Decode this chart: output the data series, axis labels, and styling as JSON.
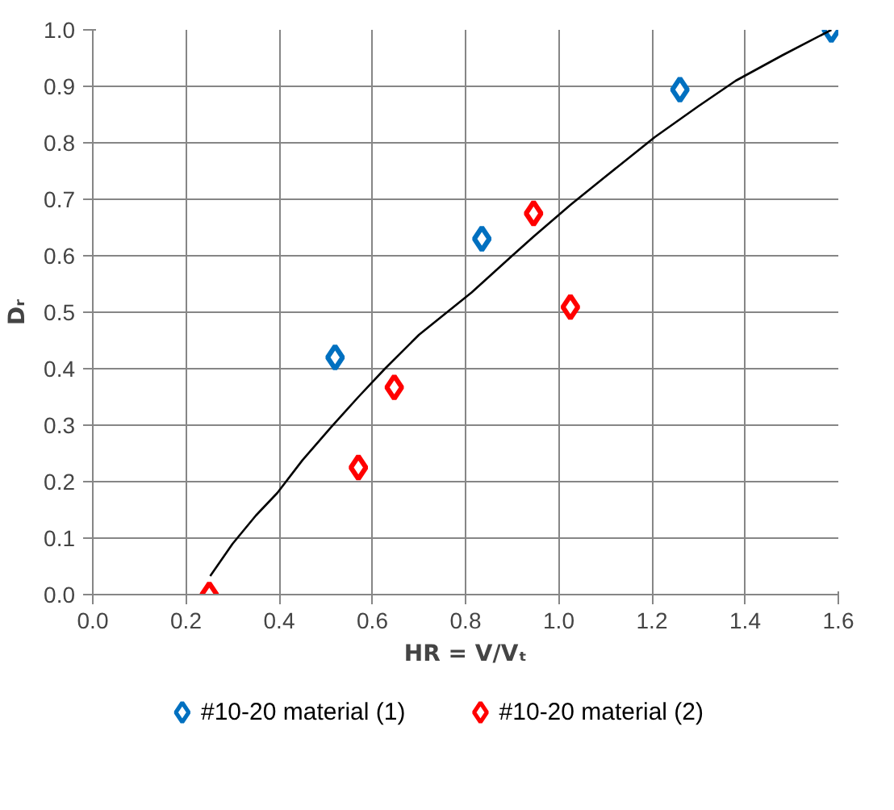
{
  "chart_data": {
    "type": "scatter",
    "xlabel": "HR = V/Vₜ",
    "ylabel": "Dᵣ",
    "xlim": [
      0,
      1.6
    ],
    "ylim": [
      0,
      1.0
    ],
    "xticks": [
      {
        "value": 0,
        "label": "0.0"
      },
      {
        "value": 0.2,
        "label": "0.2"
      },
      {
        "value": 0.4,
        "label": "0.4"
      },
      {
        "value": 0.6,
        "label": "0.6"
      },
      {
        "value": 0.8,
        "label": "0.8"
      },
      {
        "value": 1.0,
        "label": "1.0"
      },
      {
        "value": 1.2,
        "label": "1.2"
      },
      {
        "value": 1.4,
        "label": "1.4"
      },
      {
        "value": 1.6,
        "label": "1.6"
      }
    ],
    "yticks": [
      {
        "value": 0,
        "label": "0.0"
      },
      {
        "value": 0.1,
        "label": "0.1"
      },
      {
        "value": 0.2,
        "label": "0.2"
      },
      {
        "value": 0.3,
        "label": "0.3"
      },
      {
        "value": 0.4,
        "label": "0.4"
      },
      {
        "value": 0.5,
        "label": "0.5"
      },
      {
        "value": 0.6,
        "label": "0.6"
      },
      {
        "value": 0.7,
        "label": "0.7"
      },
      {
        "value": 0.8,
        "label": "0.8"
      },
      {
        "value": 0.9,
        "label": "0.9"
      },
      {
        "value": 1.0,
        "label": "1.0"
      }
    ],
    "grid": true,
    "legend": "bottom",
    "marker": "diamond",
    "series": [
      {
        "name": "#10-20 material (1)",
        "color": "#0070c0",
        "x": [
          0.52,
          0.835,
          1.26,
          1.585
        ],
        "values": [
          0.42,
          0.63,
          0.894,
          1.0
        ]
      },
      {
        "name": "#10-20 material (2)",
        "color": "#ff0000",
        "x": [
          0.25,
          0.57,
          0.647,
          0.946,
          1.025
        ],
        "values": [
          0.0,
          0.225,
          0.367,
          0.675,
          0.509
        ]
      },
      {
        "type": "line",
        "color": "#000000",
        "marker": "none",
        "x": [
          0.252,
          0.3,
          0.35,
          0.396,
          0.45,
          0.512,
          0.57,
          0.627,
          0.7,
          0.813,
          0.9,
          0.946,
          1.025,
          1.1,
          1.206,
          1.3,
          1.38,
          1.48,
          1.585
        ],
        "values": [
          0.033,
          0.09,
          0.14,
          0.18,
          0.238,
          0.297,
          0.35,
          0.4,
          0.46,
          0.535,
          0.6,
          0.634,
          0.69,
          0.74,
          0.81,
          0.865,
          0.91,
          0.955,
          1.0
        ]
      }
    ]
  }
}
